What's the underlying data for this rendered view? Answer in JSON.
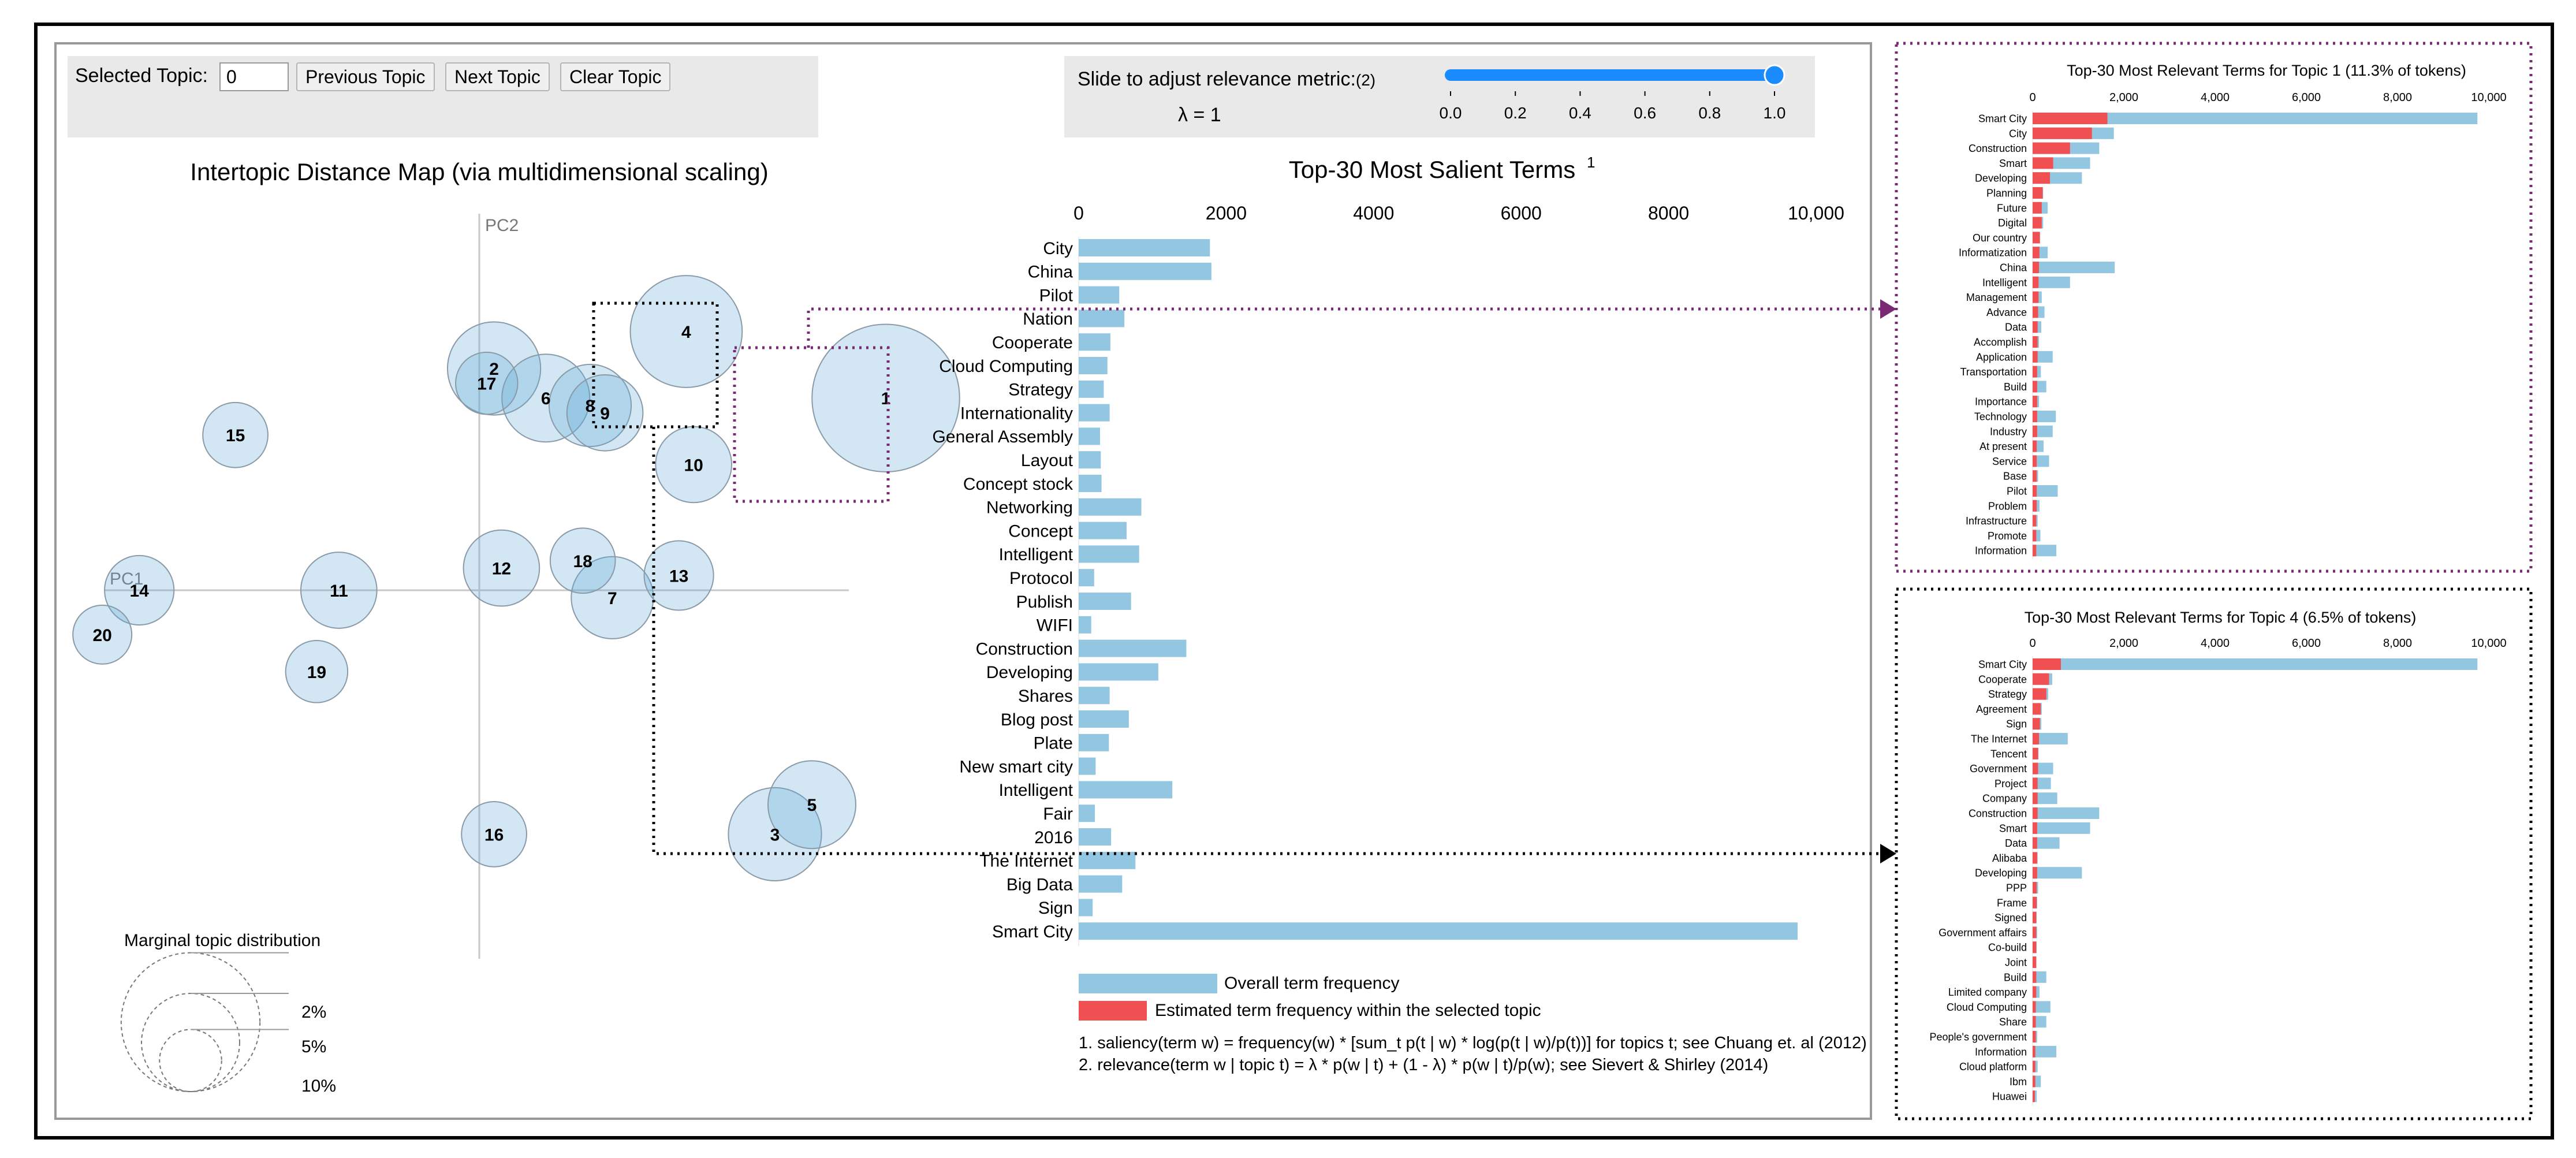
{
  "controls": {
    "selected_topic_label": "Selected Topic:",
    "selected_topic_value": "0",
    "prev_button": "Previous Topic",
    "next_button": "Next Topic",
    "clear_button": "Clear Topic",
    "slider_label": "Slide to adjust relevance metric:",
    "slider_note": "(2)",
    "lambda_label": "λ = 1",
    "slider_value": 1.0,
    "slider_ticks": [
      "0.0",
      "0.2",
      "0.4",
      "0.6",
      "0.8",
      "1.0"
    ]
  },
  "chart_data": [
    {
      "type": "scatter",
      "title": "Intertopic Distance Map (via multidimensional scaling)",
      "xlabel": "PC1",
      "ylabel": "PC2",
      "points": [
        {
          "topic": "1",
          "x": 0.55,
          "y": 0.26,
          "size": 11.3
        },
        {
          "topic": "2",
          "x": 0.02,
          "y": 0.3,
          "size": 4.5
        },
        {
          "topic": "3",
          "x": 0.4,
          "y": -0.33,
          "size": 4.5
        },
        {
          "topic": "4",
          "x": 0.28,
          "y": 0.35,
          "size": 6.5
        },
        {
          "topic": "5",
          "x": 0.45,
          "y": -0.29,
          "size": 4.0
        },
        {
          "topic": "6",
          "x": 0.09,
          "y": 0.26,
          "size": 4.0
        },
        {
          "topic": "7",
          "x": 0.18,
          "y": -0.01,
          "size": 3.5
        },
        {
          "topic": "8",
          "x": 0.15,
          "y": 0.25,
          "size": 3.5
        },
        {
          "topic": "9",
          "x": 0.17,
          "y": 0.24,
          "size": 3.0
        },
        {
          "topic": "10",
          "x": 0.29,
          "y": 0.17,
          "size": 3.0
        },
        {
          "topic": "11",
          "x": -0.19,
          "y": 0.0,
          "size": 3.0
        },
        {
          "topic": "12",
          "x": 0.03,
          "y": 0.03,
          "size": 3.0
        },
        {
          "topic": "13",
          "x": 0.27,
          "y": 0.02,
          "size": 2.5
        },
        {
          "topic": "14",
          "x": -0.46,
          "y": 0.0,
          "size": 2.5
        },
        {
          "topic": "15",
          "x": -0.33,
          "y": 0.21,
          "size": 2.2
        },
        {
          "topic": "16",
          "x": 0.02,
          "y": -0.33,
          "size": 2.2
        },
        {
          "topic": "17",
          "x": 0.01,
          "y": 0.28,
          "size": 2.0
        },
        {
          "topic": "18",
          "x": 0.14,
          "y": 0.04,
          "size": 2.2
        },
        {
          "topic": "19",
          "x": -0.22,
          "y": -0.11,
          "size": 2.0
        },
        {
          "topic": "20",
          "x": -0.51,
          "y": -0.06,
          "size": 1.8
        }
      ],
      "legend": {
        "title": "Marginal topic distribution",
        "entries": [
          {
            "label": "2%",
            "value": 2
          },
          {
            "label": "5%",
            "value": 5
          },
          {
            "label": "10%",
            "value": 10
          }
        ]
      }
    },
    {
      "type": "bar",
      "title": "Top-30 Most Salient Terms",
      "title_superscript": "1",
      "xlim": [
        0,
        10000
      ],
      "xticks": [
        "0",
        "2000",
        "4000",
        "6000",
        "8000",
        "10,000"
      ],
      "categories": [
        "City",
        "China",
        "Pilot",
        "Nation",
        "Cooperate",
        "Cloud Computing",
        "Strategy",
        "Internationality",
        "General Assembly",
        "Layout",
        "Concept stock",
        "Networking",
        "Concept",
        "Intelligent",
        "Protocol",
        "Publish",
        "WIFI",
        "Construction",
        "Developing",
        "Shares",
        "Blog post",
        "Plate",
        "New smart city",
        "Intelligent",
        "Fair",
        "2016",
        "The Internet",
        "Big Data",
        "Sign",
        "Smart City"
      ],
      "series": [
        {
          "name": "Overall term frequency",
          "values": [
            1780,
            1800,
            550,
            620,
            430,
            390,
            340,
            420,
            290,
            300,
            310,
            850,
            650,
            820,
            210,
            710,
            170,
            1460,
            1080,
            420,
            680,
            410,
            230,
            1270,
            220,
            440,
            770,
            590,
            190,
            9750
          ]
        }
      ],
      "legend": [
        "Overall term frequency",
        "Estimated term frequency within the selected topic"
      ],
      "footnotes": [
        "1. saliency(term w) = frequency(w) * [sum_t p(t | w) * log(p(t | w)/p(t))] for topics t; see Chuang et. al (2012)",
        "2. relevance(term w | topic t) = λ * p(w | t) + (1 - λ) * p(w | t)/p(w); see Sievert & Shirley (2014)"
      ]
    },
    {
      "type": "bar",
      "title": "Top-30 Most Relevant Terms for Topic 1 (11.3% of tokens)",
      "xlim": [
        0,
        10000
      ],
      "xticks": [
        "0",
        "2,000",
        "4,000",
        "6,000",
        "8,000",
        "10,000"
      ],
      "categories": [
        "Smart City",
        "City",
        "Construction",
        "Smart",
        "Developing",
        "Planning",
        "Future",
        "Digital",
        "Our country",
        "Informatization",
        "China",
        "Intelligent",
        "Management",
        "Advance",
        "Data",
        "Accomplish",
        "Application",
        "Transportation",
        "Build",
        "Importance",
        "Technology",
        "Industry",
        "At present",
        "Service",
        "Base",
        "Pilot",
        "Problem",
        "Infrastructure",
        "Promote",
        "Information"
      ],
      "series": [
        {
          "name": "Overall term frequency",
          "values": [
            9750,
            1780,
            1460,
            1260,
            1080,
            230,
            330,
            230,
            160,
            330,
            1800,
            820,
            200,
            260,
            190,
            140,
            440,
            180,
            300,
            140,
            510,
            440,
            240,
            360,
            120,
            550,
            150,
            110,
            170,
            520
          ]
        },
        {
          "name": "Estimated term frequency within the selected topic",
          "values": [
            1640,
            1300,
            820,
            450,
            380,
            220,
            200,
            200,
            160,
            150,
            140,
            130,
            130,
            120,
            110,
            110,
            110,
            100,
            100,
            100,
            100,
            100,
            90,
            90,
            90,
            90,
            90,
            80,
            80,
            80
          ]
        }
      ]
    },
    {
      "type": "bar",
      "title": "Top-30 Most Relevant Terms for Topic 4 (6.5% of tokens)",
      "xlim": [
        0,
        10000
      ],
      "xticks": [
        "0",
        "2,000",
        "4,000",
        "6,000",
        "8,000",
        "10,000"
      ],
      "categories": [
        "Smart City",
        "Cooperate",
        "Strategy",
        "Agreement",
        "Sign",
        "The Internet",
        "Tencent",
        "Government",
        "Project",
        "Company",
        "Construction",
        "Smart",
        "Data",
        "Alibaba",
        "Developing",
        "PPP",
        "Frame",
        "Signed",
        "Government affairs",
        "Co-build",
        "Joint",
        "Build",
        "Limited company",
        "Cloud Computing",
        "Share",
        "People's government",
        "Information",
        "Cloud platform",
        "Ibm",
        "Huawei"
      ],
      "series": [
        {
          "name": "Overall term frequency",
          "values": [
            9750,
            430,
            340,
            200,
            190,
            770,
            130,
            450,
            400,
            540,
            1460,
            1260,
            590,
            110,
            1080,
            120,
            100,
            90,
            100,
            90,
            80,
            300,
            150,
            390,
            300,
            100,
            520,
            110,
            180,
            90
          ]
        },
        {
          "name": "Estimated term frequency within the selected topic",
          "values": [
            620,
            360,
            300,
            180,
            160,
            140,
            120,
            120,
            110,
            110,
            110,
            100,
            100,
            100,
            100,
            90,
            90,
            80,
            80,
            80,
            80,
            80,
            80,
            70,
            70,
            70,
            60,
            60,
            60,
            50
          ]
        }
      ]
    }
  ]
}
